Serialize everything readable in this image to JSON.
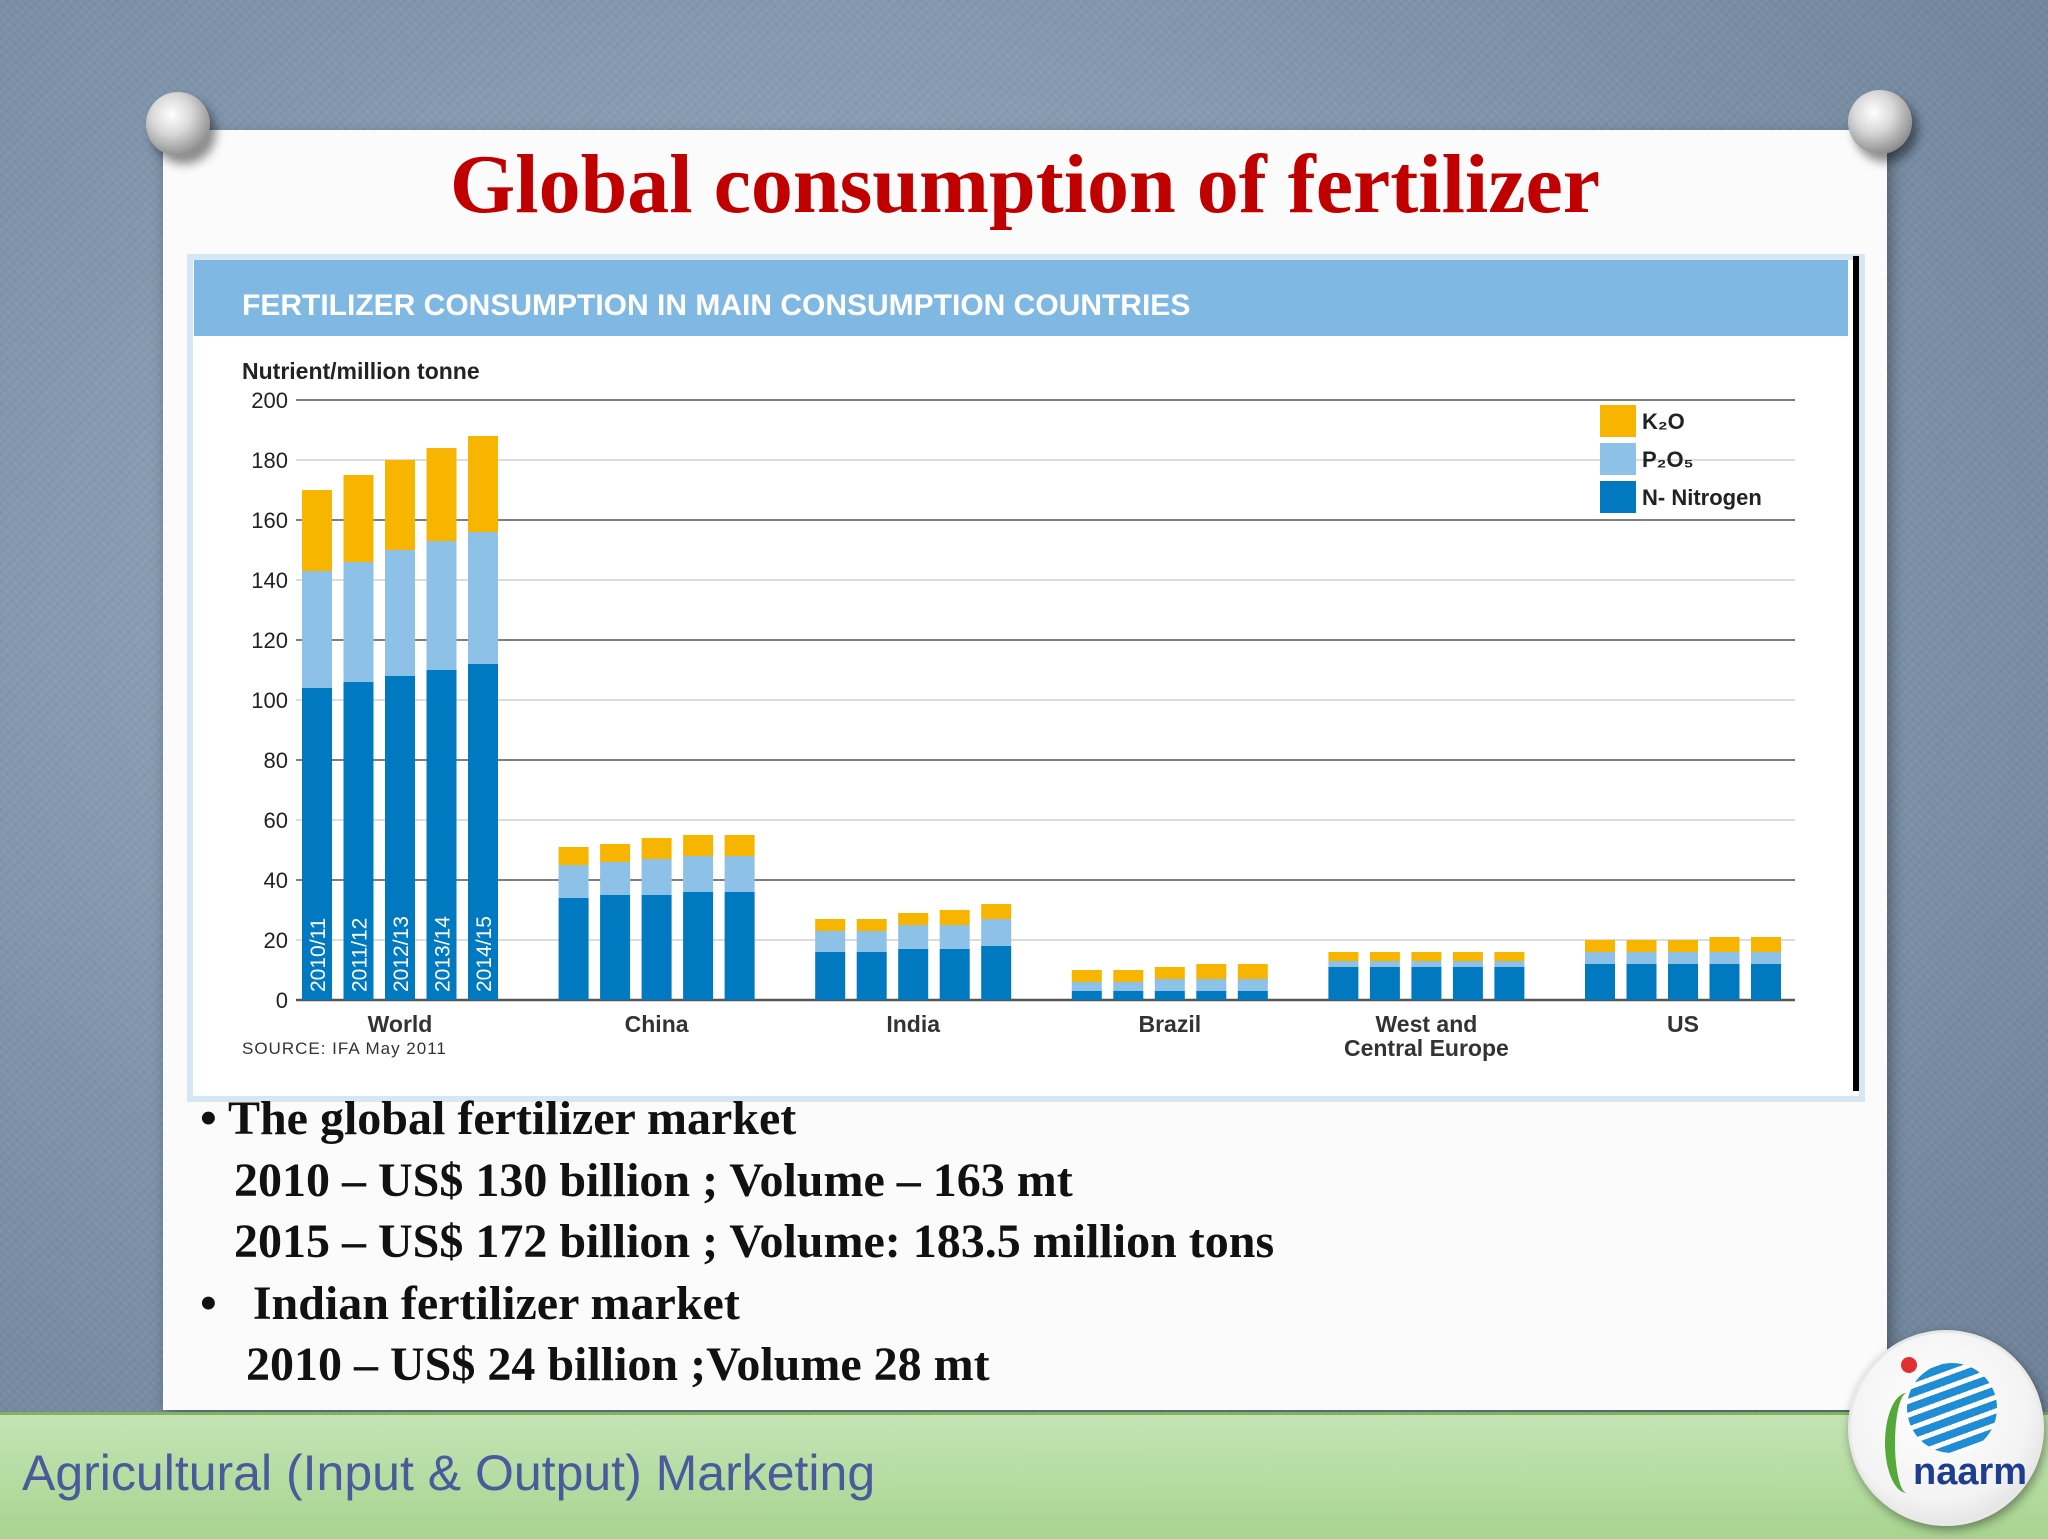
{
  "slide": {
    "title": "Global consumption of fertilizer",
    "bullets": [
      {
        "bullet": "•",
        "text": " The global fertilizer market"
      },
      {
        "bullet": "",
        "text": "2010 – US$ 130 billion ; Volume – 163 mt"
      },
      {
        "bullet": "",
        "text": "2015 – US$ 172 billion ; Volume: 183.5 million tons"
      },
      {
        "bullet": "•",
        "text": "   Indian fertilizer market"
      },
      {
        "bullet": "",
        "text": "2010 – US$ 24 billion ;Volume 28 mt"
      }
    ],
    "footer": "Agricultural (Input & Output) Marketing",
    "logo_text": "naarm"
  },
  "chart_data": {
    "type": "bar",
    "stacked": true,
    "title": "FERTILIZER CONSUMPTION IN MAIN CONSUMPTION COUNTRIES",
    "ylabel": "Nutrient/million tonne",
    "ylim": [
      0,
      200
    ],
    "yticks": [
      0,
      20,
      40,
      60,
      80,
      100,
      120,
      140,
      160,
      180,
      200
    ],
    "source": "SOURCE: IFA May 2011",
    "legend_position": "top-right",
    "groups": [
      "World",
      "China",
      "India",
      "Brazil",
      "West and Central Europe",
      "US"
    ],
    "group_labels": [
      [
        "World"
      ],
      [
        "China"
      ],
      [
        "India"
      ],
      [
        "Brazil"
      ],
      [
        "West and",
        "Central Europe"
      ],
      [
        "US"
      ]
    ],
    "periods": [
      "2010/11",
      "2011/12",
      "2012/13",
      "2013/14",
      "2014/15"
    ],
    "series": [
      {
        "name": "N- Nitrogen",
        "legend_label": "N- Nitrogen",
        "color": "#0079c1",
        "values": [
          [
            104,
            106,
            108,
            110,
            112
          ],
          [
            34,
            35,
            35,
            36,
            36
          ],
          [
            16,
            16,
            17,
            17,
            18
          ],
          [
            3,
            3,
            3,
            3,
            3
          ],
          [
            11,
            11,
            11,
            11,
            11
          ],
          [
            12,
            12,
            12,
            12,
            12
          ]
        ]
      },
      {
        "name": "P2O5",
        "legend_label": "P₂O₅",
        "color": "#8ec1e8",
        "values": [
          [
            39,
            40,
            42,
            43,
            44
          ],
          [
            11,
            11,
            12,
            12,
            12
          ],
          [
            7,
            7,
            8,
            8,
            9
          ],
          [
            3,
            3,
            4,
            4,
            4
          ],
          [
            2,
            2,
            2,
            2,
            2
          ],
          [
            4,
            4,
            4,
            4,
            4
          ]
        ]
      },
      {
        "name": "K2O",
        "legend_label": "K₂O",
        "color": "#f7b500",
        "values": [
          [
            27,
            29,
            30,
            31,
            32
          ],
          [
            6,
            6,
            7,
            7,
            7
          ],
          [
            4,
            4,
            4,
            5,
            5
          ],
          [
            4,
            4,
            4,
            5,
            5
          ],
          [
            3,
            3,
            3,
            3,
            3
          ],
          [
            4,
            4,
            4,
            5,
            5
          ]
        ]
      }
    ],
    "header_color": "#7fb9e3",
    "header_text_color": "#ffffff"
  }
}
